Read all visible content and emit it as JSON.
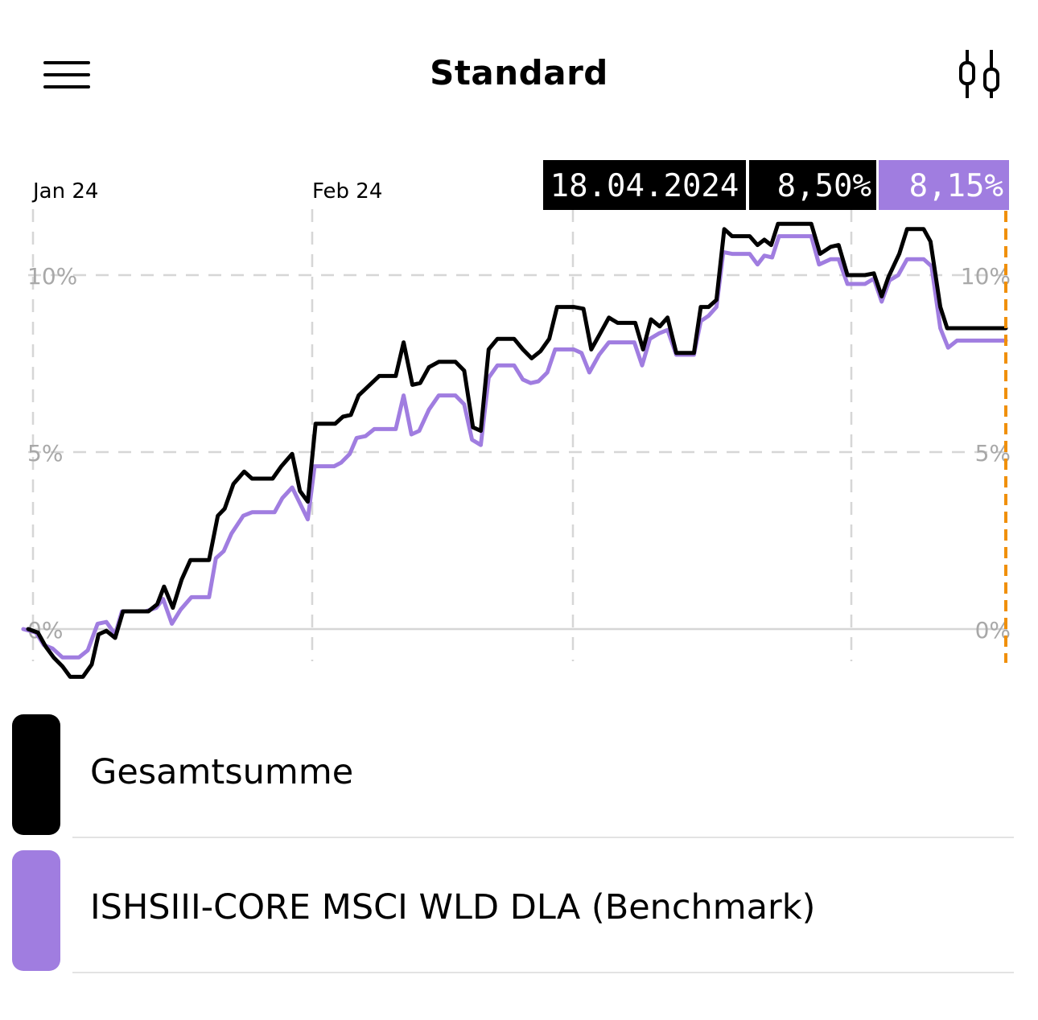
{
  "header": {
    "title": "Standard",
    "menu_icon": "hamburger-menu-icon",
    "chart_type_icon": "candlestick-chart-icon"
  },
  "tooltip": {
    "date": "18.04.2024",
    "series1_value": "8,50%",
    "series2_value": "8,15%"
  },
  "colors": {
    "portfolio": "#000000",
    "benchmark": "#a07de0",
    "cursor": "#f0900a",
    "grid": "#d6d6d6",
    "axis_label": "#a8a8a8"
  },
  "legend": [
    {
      "label": "Gesamtsumme",
      "color": "#000000"
    },
    {
      "label": "ISHSIII-CORE MSCI WLD DLA (Benchmark)",
      "color": "#a07de0"
    }
  ],
  "chart_data": {
    "type": "line",
    "x_tick_labels": [
      "Jan 24",
      "Feb 24"
    ],
    "y_tick_labels": [
      "10%",
      "5%",
      "0%"
    ],
    "y_ticks": [
      10,
      5,
      0
    ],
    "ylim": [
      -1,
      11.3
    ],
    "x_range": [
      0,
      100
    ],
    "grid": true,
    "cursor_x": 100,
    "series": [
      {
        "name": "Gesamtsumme",
        "color": "#000000",
        "values": [
          [
            0,
            0
          ],
          [
            1,
            -0.1
          ],
          [
            1.8,
            -0.5
          ],
          [
            2.6,
            -0.8
          ],
          [
            3.5,
            -1.05
          ],
          [
            4.3,
            -1.35
          ],
          [
            5.6,
            -1.35
          ],
          [
            6.5,
            -1.0
          ],
          [
            7.2,
            -0.15
          ],
          [
            8,
            -0.05
          ],
          [
            8.9,
            -0.25
          ],
          [
            9.7,
            0.5
          ],
          [
            11,
            0.5
          ],
          [
            12.3,
            0.5
          ],
          [
            13.2,
            0.7
          ],
          [
            13.9,
            1.2
          ],
          [
            14.8,
            0.6
          ],
          [
            15.7,
            1.4
          ],
          [
            16.6,
            1.95
          ],
          [
            18.5,
            1.95
          ],
          [
            19.4,
            3.2
          ],
          [
            20.1,
            3.4
          ],
          [
            21,
            4.1
          ],
          [
            22.1,
            4.45
          ],
          [
            22.9,
            4.25
          ],
          [
            25,
            4.25
          ],
          [
            25.9,
            4.6
          ],
          [
            27,
            4.95
          ],
          [
            27.8,
            3.9
          ],
          [
            28.6,
            3.6
          ],
          [
            29.4,
            5.8
          ],
          [
            31.4,
            5.8
          ],
          [
            32.2,
            6.0
          ],
          [
            33,
            6.05
          ],
          [
            33.8,
            6.6
          ],
          [
            35.9,
            7.15
          ],
          [
            37.6,
            7.15
          ],
          [
            38.4,
            8.1
          ],
          [
            39.3,
            6.9
          ],
          [
            40.1,
            6.95
          ],
          [
            41,
            7.4
          ],
          [
            42,
            7.55
          ],
          [
            43.7,
            7.55
          ],
          [
            44.6,
            7.3
          ],
          [
            45.5,
            5.7
          ],
          [
            46.3,
            5.6
          ],
          [
            47.1,
            7.9
          ],
          [
            48,
            8.2
          ],
          [
            49.7,
            8.2
          ],
          [
            50.6,
            7.9
          ],
          [
            51.5,
            7.65
          ],
          [
            52.4,
            7.85
          ],
          [
            53.3,
            8.2
          ],
          [
            54.1,
            9.1
          ],
          [
            55.8,
            9.1
          ],
          [
            56.8,
            9.05
          ],
          [
            57.6,
            7.9
          ],
          [
            58.4,
            8.3
          ],
          [
            59.4,
            8.8
          ],
          [
            60.3,
            8.65
          ],
          [
            62.1,
            8.65
          ],
          [
            62.9,
            7.9
          ],
          [
            63.7,
            8.75
          ],
          [
            64.6,
            8.55
          ],
          [
            65.4,
            8.8
          ],
          [
            66.3,
            7.8
          ],
          [
            68.1,
            7.8
          ],
          [
            68.8,
            9.1
          ],
          [
            69.6,
            9.1
          ],
          [
            70.4,
            9.3
          ],
          [
            71.2,
            11.3
          ],
          [
            72,
            11.1
          ],
          [
            73.8,
            11.1
          ],
          [
            74.6,
            10.85
          ],
          [
            75.3,
            11.0
          ],
          [
            76,
            10.85
          ],
          [
            76.7,
            11.45
          ],
          [
            78.5,
            11.45
          ],
          [
            79.2,
            11.45
          ],
          [
            80.1,
            11.45
          ],
          [
            81,
            10.6
          ],
          [
            82.1,
            10.8
          ],
          [
            82.9,
            10.85
          ],
          [
            83.8,
            10.0
          ],
          [
            85.6,
            10.0
          ],
          [
            86.5,
            10.05
          ],
          [
            87.3,
            9.4
          ],
          [
            88,
            9.95
          ],
          [
            89.1,
            10.6
          ],
          [
            89.9,
            11.3
          ],
          [
            91.6,
            11.3
          ],
          [
            92.3,
            10.95
          ],
          [
            93.3,
            9.1
          ],
          [
            94,
            8.5
          ],
          [
            96,
            8.5
          ],
          [
            96.9,
            8.5
          ],
          [
            100,
            8.5
          ]
        ]
      },
      {
        "name": "ISHSIII-CORE MSCI WLD DLA (Benchmark)",
        "color": "#a07de0",
        "values": [
          [
            -0.5,
            0
          ],
          [
            0.8,
            -0.1
          ],
          [
            1.6,
            -0.45
          ],
          [
            2.5,
            -0.55
          ],
          [
            3.5,
            -0.8
          ],
          [
            4.3,
            -0.8
          ],
          [
            5.2,
            -0.8
          ],
          [
            6.1,
            -0.6
          ],
          [
            7.1,
            0.15
          ],
          [
            8,
            0.2
          ],
          [
            8.9,
            -0.15
          ],
          [
            9.6,
            0.5
          ],
          [
            11,
            0.5
          ],
          [
            12,
            0.5
          ],
          [
            13.1,
            0.6
          ],
          [
            13.8,
            0.85
          ],
          [
            14.7,
            0.15
          ],
          [
            15.6,
            0.55
          ],
          [
            16.7,
            0.9
          ],
          [
            18.5,
            0.9
          ],
          [
            19.2,
            2.0
          ],
          [
            20,
            2.2
          ],
          [
            20.8,
            2.7
          ],
          [
            22,
            3.2
          ],
          [
            22.9,
            3.3
          ],
          [
            25.2,
            3.3
          ],
          [
            26,
            3.7
          ],
          [
            27,
            4.0
          ],
          [
            27.8,
            3.55
          ],
          [
            28.6,
            3.1
          ],
          [
            29.3,
            4.6
          ],
          [
            31.3,
            4.6
          ],
          [
            32,
            4.7
          ],
          [
            32.9,
            4.95
          ],
          [
            33.6,
            5.4
          ],
          [
            34.5,
            5.45
          ],
          [
            35.4,
            5.65
          ],
          [
            37.6,
            5.65
          ],
          [
            38.4,
            6.6
          ],
          [
            39.2,
            5.5
          ],
          [
            40,
            5.6
          ],
          [
            41,
            6.2
          ],
          [
            42,
            6.6
          ],
          [
            43.7,
            6.6
          ],
          [
            44.6,
            6.35
          ],
          [
            45.4,
            5.35
          ],
          [
            46.3,
            5.2
          ],
          [
            47.1,
            7.1
          ],
          [
            48,
            7.45
          ],
          [
            49.7,
            7.45
          ],
          [
            50.6,
            7.05
          ],
          [
            51.4,
            6.95
          ],
          [
            52.2,
            7.0
          ],
          [
            53.1,
            7.25
          ],
          [
            53.9,
            7.9
          ],
          [
            55.8,
            7.9
          ],
          [
            56.6,
            7.8
          ],
          [
            57.4,
            7.25
          ],
          [
            58.4,
            7.75
          ],
          [
            59.4,
            8.1
          ],
          [
            62,
            8.1
          ],
          [
            62.8,
            7.45
          ],
          [
            63.6,
            8.2
          ],
          [
            64.5,
            8.35
          ],
          [
            65.4,
            8.45
          ],
          [
            66.3,
            7.75
          ],
          [
            68.1,
            7.75
          ],
          [
            68.8,
            8.7
          ],
          [
            69.6,
            8.85
          ],
          [
            70.4,
            9.1
          ],
          [
            71.1,
            10.65
          ],
          [
            72,
            10.6
          ],
          [
            73.8,
            10.6
          ],
          [
            74.6,
            10.3
          ],
          [
            75.3,
            10.55
          ],
          [
            76.1,
            10.5
          ],
          [
            76.8,
            11.1
          ],
          [
            78.5,
            11.1
          ],
          [
            79.2,
            11.1
          ],
          [
            80.1,
            11.1
          ],
          [
            80.9,
            10.3
          ],
          [
            82.1,
            10.45
          ],
          [
            82.9,
            10.45
          ],
          [
            83.8,
            9.75
          ],
          [
            85.6,
            9.75
          ],
          [
            86.5,
            9.9
          ],
          [
            87.3,
            9.25
          ],
          [
            88.1,
            9.85
          ],
          [
            89,
            10.0
          ],
          [
            89.9,
            10.45
          ],
          [
            91.6,
            10.45
          ],
          [
            92.4,
            10.25
          ],
          [
            93.3,
            8.5
          ],
          [
            94.1,
            7.95
          ],
          [
            95,
            8.15
          ],
          [
            96,
            8.15
          ],
          [
            100,
            8.15
          ]
        ]
      }
    ]
  }
}
